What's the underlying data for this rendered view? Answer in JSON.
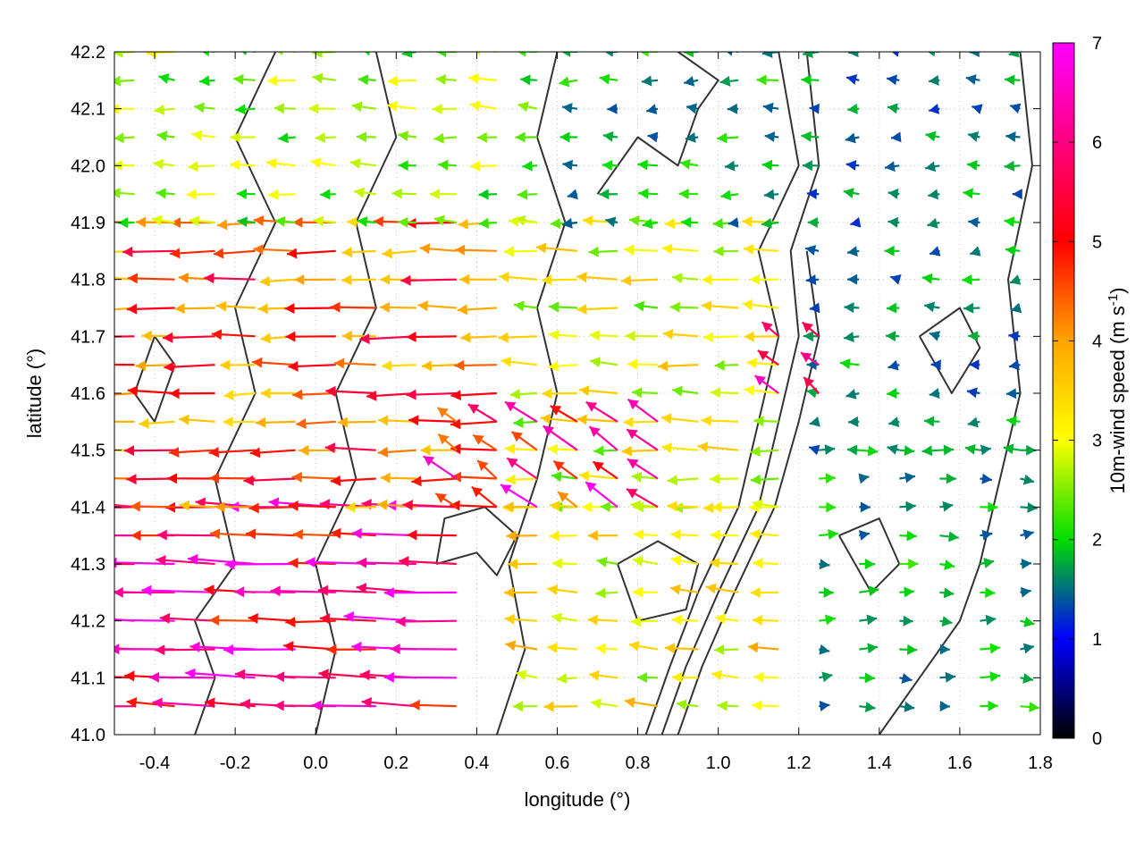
{
  "chart_data": {
    "type": "vector-field",
    "xlabel": "longitude (°)",
    "ylabel": "latitude (°)",
    "xlim": [
      -0.5,
      1.8
    ],
    "ylim": [
      41.0,
      42.2
    ],
    "xticks": [
      "-0.4",
      "-0.2",
      "0.0",
      "0.2",
      "0.4",
      "0.6",
      "0.8",
      "1.0",
      "1.2",
      "1.4",
      "1.6",
      "1.8"
    ],
    "yticks": [
      "41.0",
      "41.1",
      "41.2",
      "41.3",
      "41.4",
      "41.5",
      "41.6",
      "41.7",
      "41.8",
      "41.9",
      "42.0",
      "42.1",
      "42.2"
    ],
    "grid": true,
    "colorbar": {
      "label_main": "10m-wind speed (m s",
      "label_sup": "-1",
      "label_close": ")",
      "range": [
        0,
        7
      ],
      "ticks": [
        "0",
        "1",
        "2",
        "3",
        "4",
        "5",
        "6",
        "7"
      ],
      "colormap": [
        "#000000",
        "#0000ff",
        "#00dd00",
        "#ffff00",
        "#ffa500",
        "#ff0000",
        "#ff00ff"
      ]
    },
    "wind_field": {
      "grid_step_deg": 0.1,
      "regions": [
        {
          "lon_range": [
            -0.5,
            0.45
          ],
          "lat_range": [
            41.05,
            41.4
          ],
          "u": -5.5,
          "v": 0.2,
          "speed": 6.0
        },
        {
          "lon_range": [
            -0.5,
            0.5
          ],
          "lat_range": [
            41.4,
            41.9
          ],
          "u": -4.0,
          "v": 0.0,
          "speed": 4.5
        },
        {
          "lon_range": [
            -0.5,
            0.6
          ],
          "lat_range": [
            41.9,
            42.2
          ],
          "u": -2.0,
          "v": 0.1,
          "speed": 2.5
        },
        {
          "lon_range": [
            0.5,
            1.2
          ],
          "lat_range": [
            41.4,
            41.9
          ],
          "u": -3.0,
          "v": 0.1,
          "speed": 3.0
        },
        {
          "lon_range": [
            0.6,
            1.2
          ],
          "lat_range": [
            41.9,
            42.2
          ],
          "u": -1.5,
          "v": 0.0,
          "speed": 1.8
        },
        {
          "lon_range": [
            0.5,
            1.2
          ],
          "lat_range": [
            41.05,
            41.4
          ],
          "u": -2.5,
          "v": 0.2,
          "speed": 3.2
        },
        {
          "lon_range": [
            1.2,
            1.8
          ],
          "lat_range": [
            41.5,
            42.2
          ],
          "u": -1.2,
          "v": 0.0,
          "speed": 1.6
        },
        {
          "lon_range": [
            1.2,
            1.8
          ],
          "lat_range": [
            41.05,
            41.5
          ],
          "u": 1.5,
          "v": 0.0,
          "speed": 1.8
        },
        {
          "lon_range": [
            0.3,
            0.9
          ],
          "lat_range": [
            41.4,
            41.55
          ],
          "u": -2.5,
          "v": 1.8,
          "speed": 5.5
        },
        {
          "lon_range": [
            1.1,
            1.3
          ],
          "lat_range": [
            41.6,
            41.7
          ],
          "u": -2.0,
          "v": 1.5,
          "speed": 6.5
        }
      ]
    },
    "contour_lines": [
      [
        [
          -0.3,
          41.0
        ],
        [
          -0.25,
          41.1
        ],
        [
          -0.3,
          41.2
        ],
        [
          -0.2,
          41.3
        ],
        [
          -0.25,
          41.45
        ],
        [
          -0.15,
          41.6
        ],
        [
          -0.2,
          41.75
        ],
        [
          -0.1,
          41.9
        ],
        [
          -0.2,
          42.05
        ],
        [
          -0.1,
          42.2
        ]
      ],
      [
        [
          0.0,
          41.0
        ],
        [
          0.05,
          41.15
        ],
        [
          0.0,
          41.3
        ],
        [
          0.1,
          41.45
        ],
        [
          0.05,
          41.6
        ],
        [
          0.15,
          41.75
        ],
        [
          0.1,
          41.9
        ],
        [
          0.2,
          42.05
        ],
        [
          0.15,
          42.2
        ]
      ],
      [
        [
          0.45,
          41.0
        ],
        [
          0.52,
          41.15
        ],
        [
          0.48,
          41.3
        ],
        [
          0.55,
          41.45
        ],
        [
          0.6,
          41.6
        ],
        [
          0.55,
          41.75
        ],
        [
          0.62,
          41.9
        ],
        [
          0.55,
          42.05
        ],
        [
          0.6,
          42.2
        ]
      ],
      [
        [
          0.82,
          41.0
        ],
        [
          0.88,
          41.12
        ],
        [
          0.95,
          41.25
        ],
        [
          1.05,
          41.4
        ],
        [
          1.1,
          41.55
        ],
        [
          1.15,
          41.7
        ],
        [
          1.1,
          41.85
        ],
        [
          1.2,
          42.0
        ],
        [
          1.15,
          42.2
        ]
      ],
      [
        [
          0.86,
          41.0
        ],
        [
          0.92,
          41.12
        ],
        [
          1.0,
          41.25
        ],
        [
          1.1,
          41.4
        ],
        [
          1.15,
          41.55
        ],
        [
          1.2,
          41.7
        ],
        [
          1.18,
          41.85
        ],
        [
          1.25,
          42.0
        ],
        [
          1.22,
          42.2
        ]
      ],
      [
        [
          0.9,
          41.0
        ],
        [
          0.96,
          41.12
        ],
        [
          1.04,
          41.25
        ],
        [
          1.14,
          41.4
        ],
        [
          1.2,
          41.55
        ],
        [
          1.25,
          41.7
        ],
        [
          1.22,
          41.85
        ]
      ],
      [
        [
          1.4,
          41.0
        ],
        [
          1.5,
          41.1
        ],
        [
          1.6,
          41.2
        ],
        [
          1.65,
          41.3
        ],
        [
          1.7,
          41.45
        ],
        [
          1.75,
          41.6
        ],
        [
          1.72,
          41.8
        ],
        [
          1.78,
          42.0
        ],
        [
          1.75,
          42.2
        ]
      ],
      [
        [
          0.3,
          41.3
        ],
        [
          0.4,
          41.32
        ],
        [
          0.45,
          41.28
        ],
        [
          0.5,
          41.35
        ],
        [
          0.42,
          41.4
        ],
        [
          0.32,
          41.38
        ],
        [
          0.3,
          41.3
        ]
      ],
      [
        [
          0.75,
          41.3
        ],
        [
          0.85,
          41.34
        ],
        [
          0.95,
          41.3
        ],
        [
          0.92,
          41.22
        ],
        [
          0.8,
          41.2
        ],
        [
          0.75,
          41.3
        ]
      ],
      [
        [
          1.3,
          41.35
        ],
        [
          1.4,
          41.38
        ],
        [
          1.45,
          41.3
        ],
        [
          1.38,
          41.25
        ],
        [
          1.3,
          41.35
        ]
      ],
      [
        [
          0.7,
          41.95
        ],
        [
          0.8,
          42.05
        ],
        [
          0.9,
          42.0
        ],
        [
          0.95,
          42.1
        ],
        [
          1.0,
          42.15
        ],
        [
          0.9,
          42.2
        ]
      ],
      [
        [
          -0.45,
          41.6
        ],
        [
          -0.4,
          41.7
        ],
        [
          -0.35,
          41.65
        ],
        [
          -0.4,
          41.55
        ],
        [
          -0.45,
          41.6
        ]
      ],
      [
        [
          1.5,
          41.7
        ],
        [
          1.6,
          41.75
        ],
        [
          1.65,
          41.68
        ],
        [
          1.58,
          41.6
        ],
        [
          1.5,
          41.7
        ]
      ]
    ]
  }
}
